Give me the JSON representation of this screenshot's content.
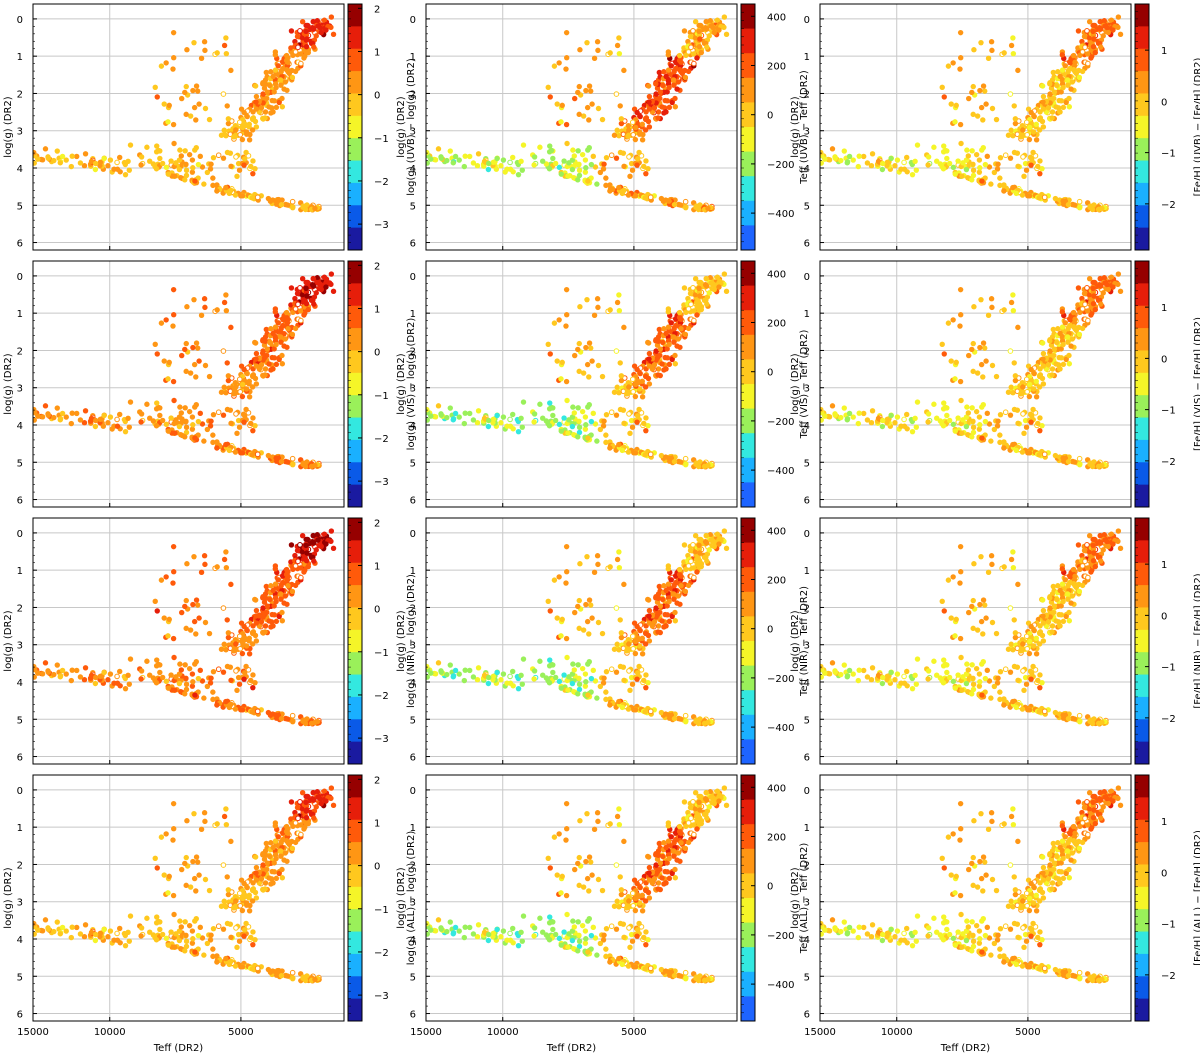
{
  "figure": {
    "type": "scatter-grid",
    "rows": 4,
    "cols": 3,
    "row_labels": [
      "UVB",
      "VIS",
      "NIR",
      "ALL"
    ]
  },
  "chart_data": {
    "type": "scatter",
    "shared_x": {
      "label": "Teff  (DR2)",
      "scale": "log-reversed",
      "range": [
        15000,
        2900
      ],
      "tick_values": [
        15000,
        10000,
        5000
      ],
      "tick_labels": [
        "15000",
        "10000",
        "5000"
      ]
    },
    "shared_y": {
      "label": "log(g)  (DR2)",
      "range": [
        -0.4,
        6.2
      ],
      "inverted": true,
      "tick_values": [
        0,
        1,
        2,
        3,
        4,
        5,
        6
      ],
      "tick_labels": [
        "0",
        "1",
        "2",
        "3",
        "4",
        "5",
        "6"
      ]
    },
    "columns": [
      {
        "quantity": "logg",
        "colorbar_labels": [
          "log(g) (UVB)  −  log(g) (DR2)",
          "log(g) (VIS)  −  log(g) (DR2)",
          "log(g) (NIR)  −  log(g) (DR2)",
          "log(g) (ALL)  −  log(g) (DR2)"
        ],
        "colorbar_range": [
          -3.6,
          2.1
        ],
        "colorbar_ticks": [
          2,
          1,
          0,
          -1,
          -2,
          -3
        ],
        "colorbar_tick_labels": [
          "2",
          "1",
          "0",
          "−1",
          "−2",
          "−3"
        ],
        "colormap": [
          "#1a1aa0",
          "#0a5ae8",
          "#1ab0ff",
          "#33e8e0",
          "#9af05a",
          "#f5f528",
          "#ffc81e",
          "#ff9614",
          "#ff5a0a",
          "#e61e0a",
          "#960000"
        ]
      },
      {
        "quantity": "teff",
        "colorbar_labels": [
          "Teff (UVB)  −  Teff (DR2)",
          "Teff (VIS)  −  Teff (DR2)",
          "Teff (NIR)  −  Teff (DR2)",
          "Teff (ALL)  −  Teff (DR2)"
        ],
        "colorbar_range": [
          -550,
          450
        ],
        "colorbar_ticks": [
          400,
          200,
          0,
          -200,
          -400
        ],
        "colorbar_tick_labels": [
          "400",
          "200",
          "0",
          "−200",
          "−400"
        ],
        "colormap": [
          "#1e64ff",
          "#1ab0ff",
          "#33e8e0",
          "#9af05a",
          "#f5f528",
          "#ffc81e",
          "#ff9614",
          "#ff5a0a",
          "#e61e0a",
          "#960000"
        ]
      },
      {
        "quantity": "feh",
        "colorbar_labels": [
          "[Fe/H] (UVB)  −  [Fe/H] (DR2)",
          "[Fe/H] (VIS)  −  [Fe/H] (DR2)",
          "[Fe/H] (NIR)  −  [Fe/H] (DR2)",
          "[Fe/H] (ALL)  −  [Fe/H] (DR2)"
        ],
        "colorbar_range": [
          -2.9,
          1.9
        ],
        "colorbar_ticks": [
          1,
          0,
          -1,
          -2
        ],
        "colorbar_tick_labels": [
          "1",
          "0",
          "−1",
          "−2"
        ],
        "colormap": [
          "#1a1aa0",
          "#0a5ae8",
          "#1ab0ff",
          "#33e8e0",
          "#9af05a",
          "#f5f528",
          "#ffc81e",
          "#ff9614",
          "#ff5a0a",
          "#e61e0a",
          "#960000"
        ]
      }
    ],
    "stars": {
      "sequence": "Hertzsprung-Russell distribution: giant branch (Teff 3100-5200 K, log g 0-3.3), horizontal-branch stars (Teff 5000-15000 K, log g 3.2-4.2), main sequence (Teff 3300-7500 K, log g 3.9-5.2), supergiants (Teff 5200-8000 K, log g 0.3-1.5)",
      "count_per_panel": 560,
      "open_markers": "stars with a small number of measurements are drawn as open circles"
    }
  }
}
